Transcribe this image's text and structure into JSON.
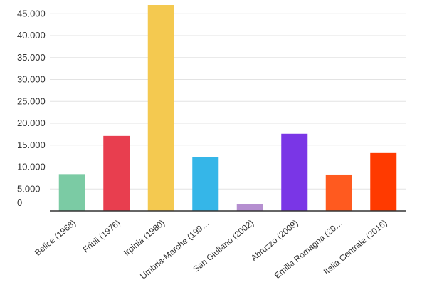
{
  "chart_data": {
    "type": "bar",
    "title": "",
    "xlabel": "",
    "ylabel": "",
    "categories": [
      "Belice (1968)",
      "Friuli (1976)",
      "Irpinia (1980)",
      "Umbria-Marche (199…",
      "San Giuliano (2002)",
      "Abruzzo (2009)",
      "Emilia Romagna (20…",
      "Italia Centrale (2016)"
    ],
    "values": [
      8400,
      17100,
      47000,
      12300,
      1500,
      17600,
      8300,
      13200
    ],
    "colors": [
      "#7bcba4",
      "#e83e4f",
      "#f4c950",
      "#35b6e8",
      "#b58fd0",
      "#7a36e6",
      "#ff5a1f",
      "#ff3a00"
    ],
    "ylim": [
      0,
      47000
    ],
    "yticks": [
      0,
      5000,
      10000,
      15000,
      20000,
      25000,
      30000,
      35000,
      40000,
      45000
    ],
    "ytick_labels": [
      "0",
      "5.000",
      "10.000",
      "15.000",
      "20.000",
      "25.000",
      "30.000",
      "35.000",
      "40.000",
      "45.000"
    ],
    "grid": true,
    "legend": "none"
  }
}
